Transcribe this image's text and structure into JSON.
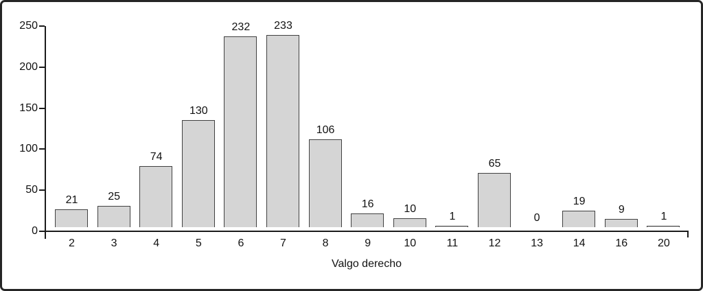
{
  "frame": {
    "background_color": "#ffffff",
    "border_color": "#262626"
  },
  "chart_data": {
    "type": "bar",
    "title": "",
    "xlabel": "Valgo derecho",
    "ylabel": "",
    "categories": [
      "2",
      "3",
      "4",
      "5",
      "6",
      "7",
      "8",
      "9",
      "10",
      "11",
      "12",
      "13",
      "14",
      "16",
      "20"
    ],
    "values": [
      21,
      25,
      74,
      130,
      232,
      233,
      106,
      16,
      10,
      1,
      65,
      0,
      19,
      9,
      1
    ],
    "bar_value_labels": [
      "21",
      "25",
      "74",
      "130",
      "232",
      "233",
      "106",
      "16",
      "10",
      "1",
      "65",
      "0",
      "19",
      "9",
      "1"
    ],
    "ylim": [
      0,
      250
    ],
    "yticks": [
      0,
      50,
      100,
      150,
      200,
      250
    ],
    "grid": false,
    "legend": "none",
    "bar_fill_color": "#d5d5d5",
    "bar_border_color": "#404040",
    "axis_color": "#1a1a1a",
    "text_color": "#111111"
  }
}
